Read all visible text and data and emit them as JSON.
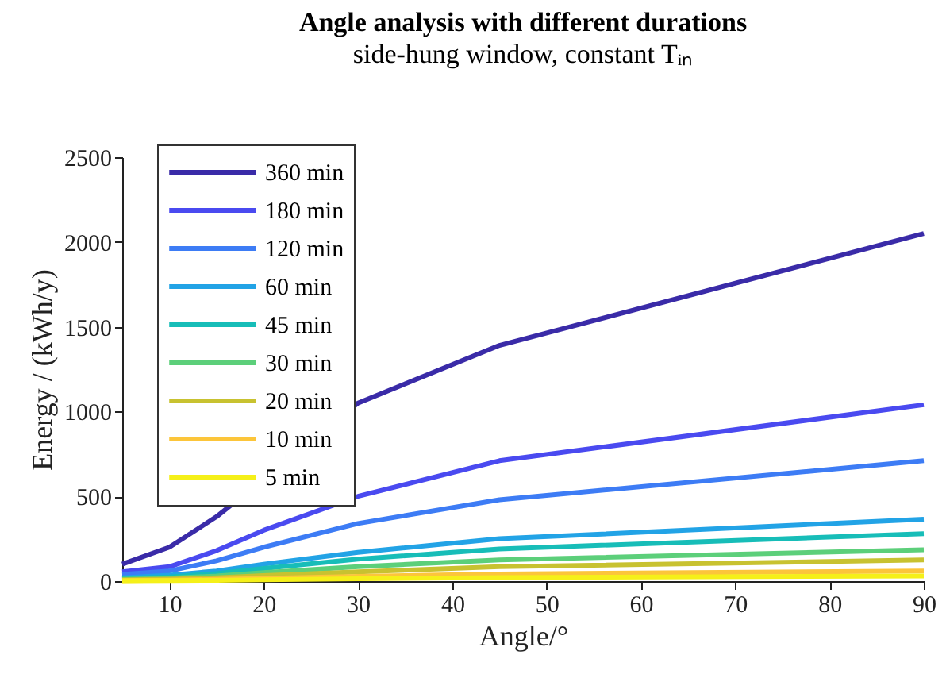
{
  "chart_data": {
    "type": "line",
    "title": "Angle analysis with different durations",
    "subtitle": "side-hung window, constant Tᵢₙ",
    "xlabel": "Angle/°",
    "ylabel": "Energy / (kWh/y)",
    "x": [
      5,
      10,
      15,
      20,
      30,
      45,
      90
    ],
    "series": [
      {
        "name": "360 min",
        "color": "#3a2ba8",
        "x": [
          5,
          10,
          15,
          30,
          45,
          90
        ],
        "values": [
          100,
          200,
          380,
          1050,
          1390,
          2050
        ]
      },
      {
        "name": "180 min",
        "color": "#4a4af0",
        "values": [
          55,
          85,
          180,
          300,
          500,
          710,
          1040
        ]
      },
      {
        "name": "120 min",
        "color": "#3d7cf5",
        "values": [
          40,
          60,
          120,
          200,
          340,
          480,
          710
        ]
      },
      {
        "name": "60 min",
        "color": "#22a3e6",
        "values": [
          20,
          35,
          60,
          100,
          170,
          250,
          365
        ]
      },
      {
        "name": "45 min",
        "color": "#17bdb8",
        "values": [
          15,
          25,
          45,
          75,
          130,
          190,
          280
        ]
      },
      {
        "name": "30 min",
        "color": "#5ccf7a",
        "values": [
          10,
          18,
          30,
          50,
          85,
          125,
          185
        ]
      },
      {
        "name": "20 min",
        "color": "#c8c230",
        "values": [
          7,
          12,
          20,
          33,
          55,
          85,
          125
        ]
      },
      {
        "name": "10 min",
        "color": "#fcc53a",
        "values": [
          4,
          6,
          10,
          16,
          28,
          42,
          60
        ]
      },
      {
        "name": "5 min",
        "color": "#f5f019",
        "values": [
          2,
          3,
          5,
          8,
          14,
          21,
          30
        ]
      }
    ],
    "xlim": [
      5,
      90
    ],
    "xticks": [
      10,
      20,
      30,
      40,
      50,
      60,
      70,
      80,
      90
    ],
    "ylim": [
      0,
      2500
    ],
    "yticks": [
      0,
      500,
      1000,
      1500,
      2000,
      2500
    ],
    "grid": false,
    "legend": "top left",
    "marker": "none",
    "line_style": "solid"
  }
}
